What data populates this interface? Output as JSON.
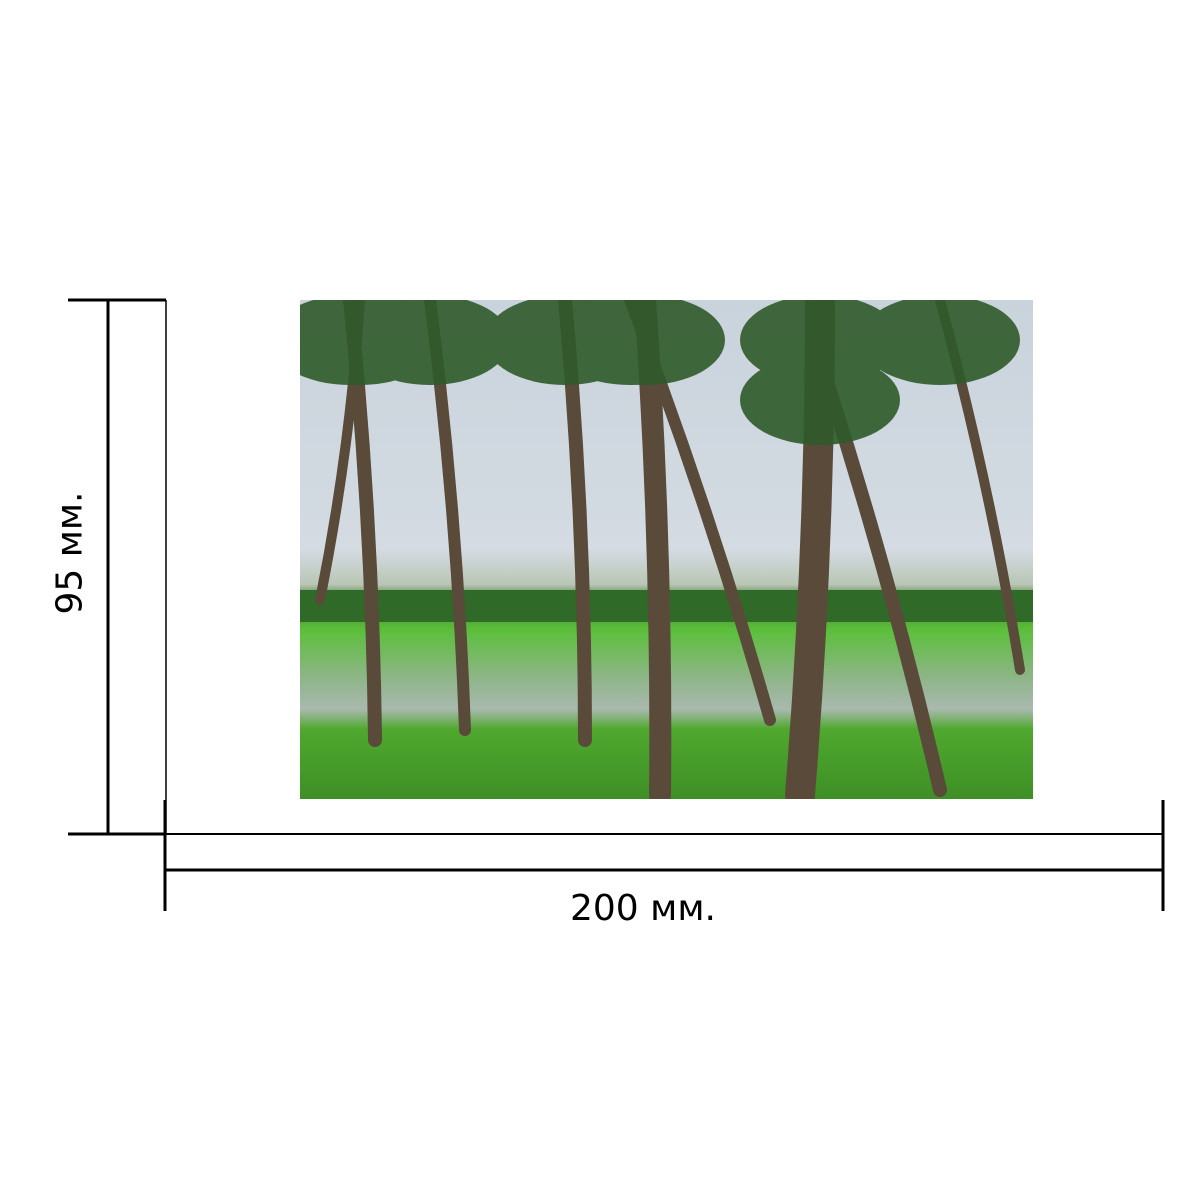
{
  "product": {
    "width_label": "200 мм.",
    "height_label": "95 мм.",
    "photo_subject": "palm-trees-over-green-rice-field"
  },
  "colors": {
    "lines": "#000000",
    "sky": "#d4dbe2",
    "grass": "#5bbf3a",
    "trunk": "#5a4a3a",
    "foliage": "#2f5a2a"
  }
}
